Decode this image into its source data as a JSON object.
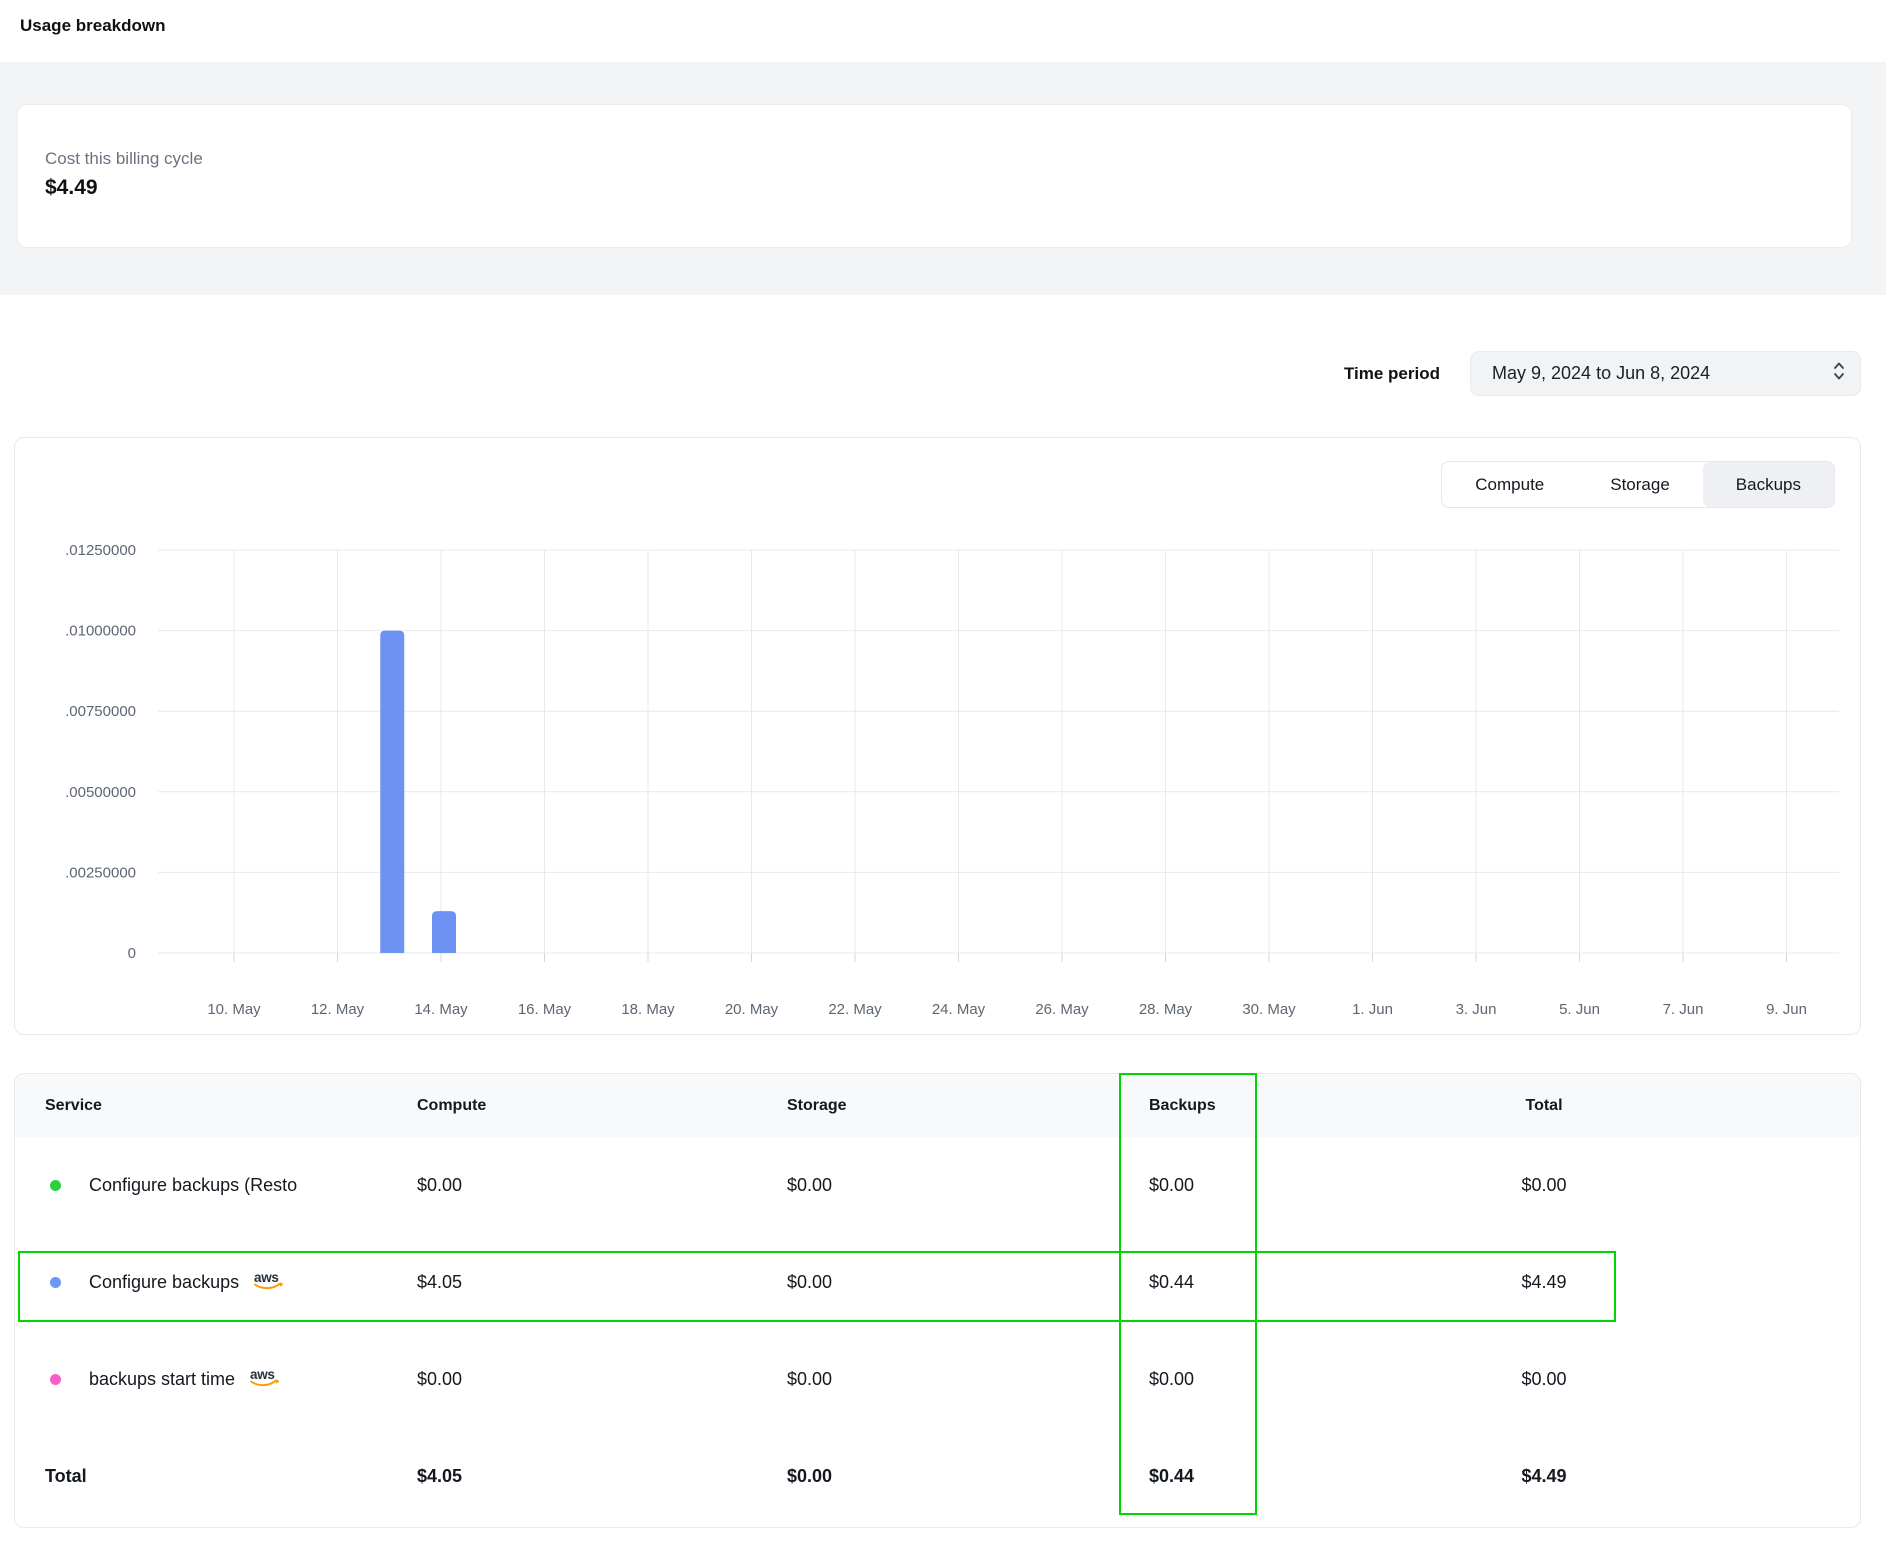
{
  "page": {
    "title": "Usage breakdown"
  },
  "summary": {
    "label": "Cost this billing cycle",
    "value": "$4.49"
  },
  "time_period": {
    "label": "Time period",
    "value": "May 9, 2024 to Jun 8, 2024"
  },
  "tabs": {
    "items": [
      {
        "label": "Compute"
      },
      {
        "label": "Storage"
      },
      {
        "label": "Backups"
      }
    ],
    "active": 2
  },
  "chart_data": {
    "type": "bar",
    "title": "",
    "xlabel": "",
    "ylabel": "",
    "legend": "none",
    "grid": true,
    "ylim": [
      0,
      0.0125
    ],
    "y_tick_values": [
      0,
      0.0025,
      0.005,
      0.0075,
      0.01,
      0.0125
    ],
    "y_tick_labels": [
      "0",
      ".00250000",
      ".00500000",
      ".00750000",
      ".01000000",
      ".01250000"
    ],
    "x_tick_labels": [
      "10. May",
      "12. May",
      "14. May",
      "16. May",
      "18. May",
      "20. May",
      "22. May",
      "24. May",
      "26. May",
      "28. May",
      "30. May",
      "1. Jun",
      "3. Jun",
      "5. Jun",
      "7. Jun",
      "9. Jun"
    ],
    "bars": [
      {
        "label": "13. May",
        "day_offset": 3,
        "value": 0.01
      },
      {
        "label": "14. May",
        "day_offset": 4,
        "value": 0.0013
      }
    ],
    "bar_color": "#6e92f4",
    "gridline_color": "#e7e9ed",
    "axis_text_color": "#5d6673"
  },
  "table": {
    "columns": [
      "Service",
      "Compute",
      "Storage",
      "Backups",
      "Total"
    ],
    "rows": [
      {
        "dot_color": "#28d23c",
        "service": "Configure backups (Resto",
        "aws_badge": false,
        "compute": "$0.00",
        "storage": "$0.00",
        "backups": "$0.00",
        "total": "$0.00"
      },
      {
        "dot_color": "#6e96f5",
        "service": "Configure backups",
        "aws_badge": true,
        "compute": "$4.05",
        "storage": "$0.00",
        "backups": "$0.44",
        "total": "$4.49"
      },
      {
        "dot_color": "#fa5fc8",
        "service": "backups start time",
        "aws_badge": true,
        "compute": "$0.00",
        "storage": "$0.00",
        "backups": "$0.00",
        "total": "$0.00"
      }
    ],
    "total_row": {
      "label": "Total",
      "compute": "$4.05",
      "storage": "$0.00",
      "backups": "$0.44",
      "total": "$4.49"
    }
  },
  "annotations": {
    "highlight_color": "#00d600",
    "column_box_target": "Backups column",
    "row_box_target": "Configure backups row"
  },
  "colors": {
    "band_bg": "#f3f4f6",
    "table_header_bg": "#f8f9fb",
    "accent_bar": "#6e92f4",
    "annotation_green": "#00d600",
    "aws_dark": "#252f3e",
    "aws_orange": "#ff9900"
  }
}
